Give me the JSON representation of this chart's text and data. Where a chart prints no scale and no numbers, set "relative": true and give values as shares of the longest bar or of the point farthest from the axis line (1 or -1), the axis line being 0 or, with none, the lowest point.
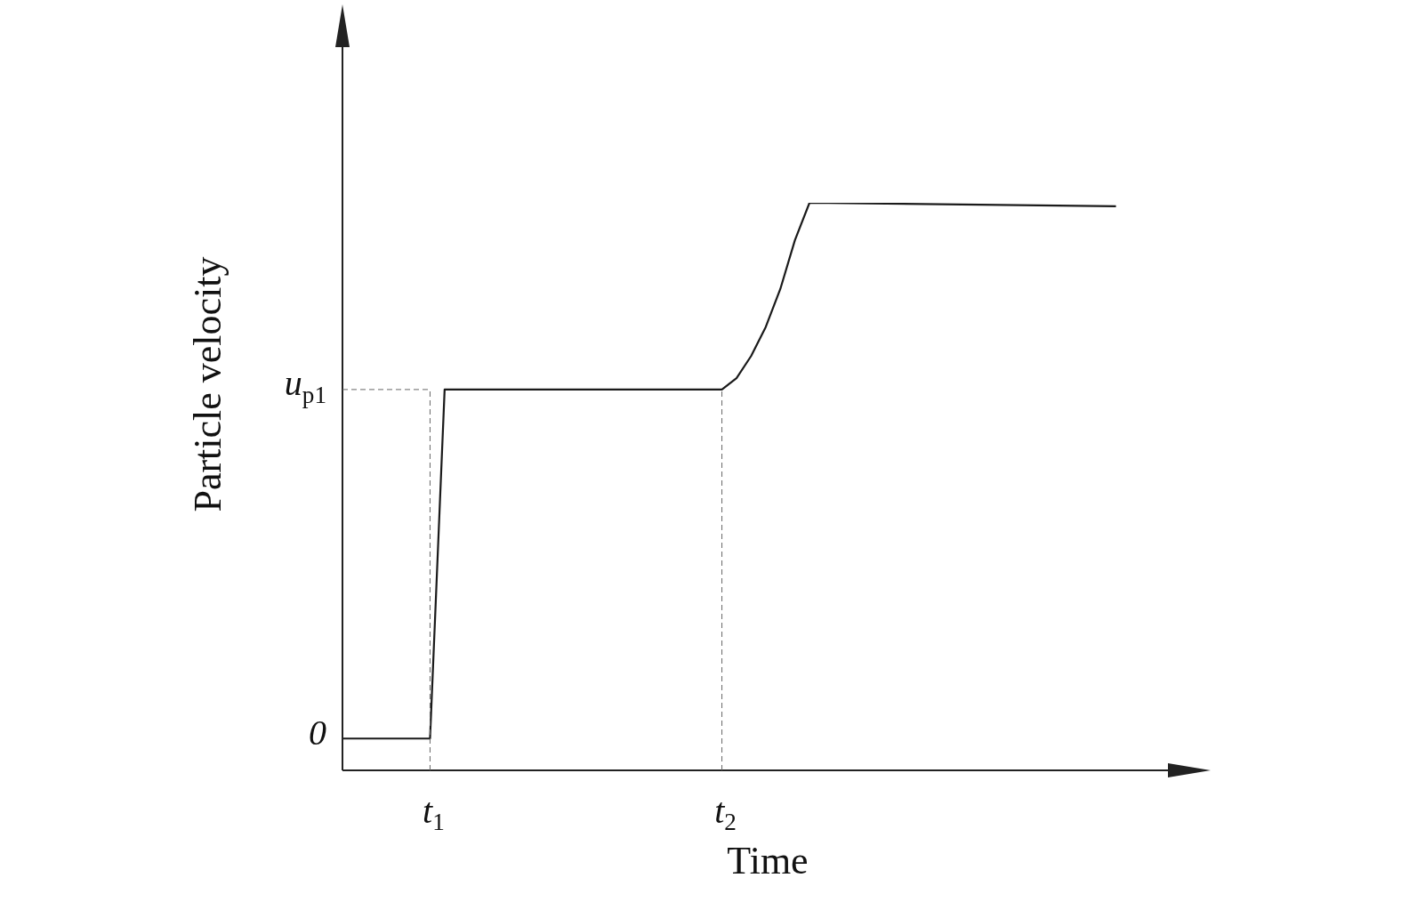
{
  "chart_data": {
    "type": "line",
    "relative": true,
    "xlabel": "Time",
    "ylabel": "Particle velocity",
    "categories": [
      null,
      null,
      null,
      null,
      null,
      null,
      "t$_{1}$",
      null,
      null,
      null,
      null,
      null,
      null,
      null,
      null,
      null,
      null,
      null,
      null,
      null,
      null,
      null,
      null,
      null,
      null,
      null,
      "t$_{2}$",
      null,
      null,
      null,
      null,
      null,
      null,
      null,
      null,
      null,
      null,
      null,
      null,
      null,
      null,
      null,
      null,
      null,
      null,
      null,
      null,
      null,
      null,
      null,
      null,
      null,
      null,
      null,
      null,
      null,
      null,
      null,
      null,
      null
    ],
    "series": [
      {
        "color": "#1a1a1a",
        "values": [
          0.056,
          null,
          null,
          null,
          null,
          null,
          0.056,
          0.671,
          null,
          null,
          null,
          null,
          null,
          null,
          null,
          null,
          null,
          null,
          null,
          null,
          null,
          null,
          null,
          null,
          null,
          null,
          0.671,
          0.691,
          0.73,
          0.781,
          0.848,
          0.934,
          1,
          null,
          null,
          null,
          null,
          null,
          null,
          null,
          null,
          null,
          null,
          null,
          null,
          null,
          null,
          null,
          null,
          null,
          null,
          null,
          null,
          0.994,
          null,
          null,
          null,
          null,
          null,
          null
        ]
      }
    ],
    "annotations": [
      "0"
    ],
    "ref_lines": [
      {
        "axis": "x",
        "value": "t$_{1}$",
        "line_style": "dashed",
        "color": "#666666"
      },
      {
        "axis": "x",
        "value": "t$_{2}$",
        "line_style": "dashed",
        "color": "#666666"
      },
      {
        "axis": "y",
        "value": 0.671,
        "label": "u$_{p1}$",
        "line_style": "dashed",
        "color": "#666666"
      }
    ],
    "legend": false,
    "marker": "none",
    "line_style": "solid"
  }
}
